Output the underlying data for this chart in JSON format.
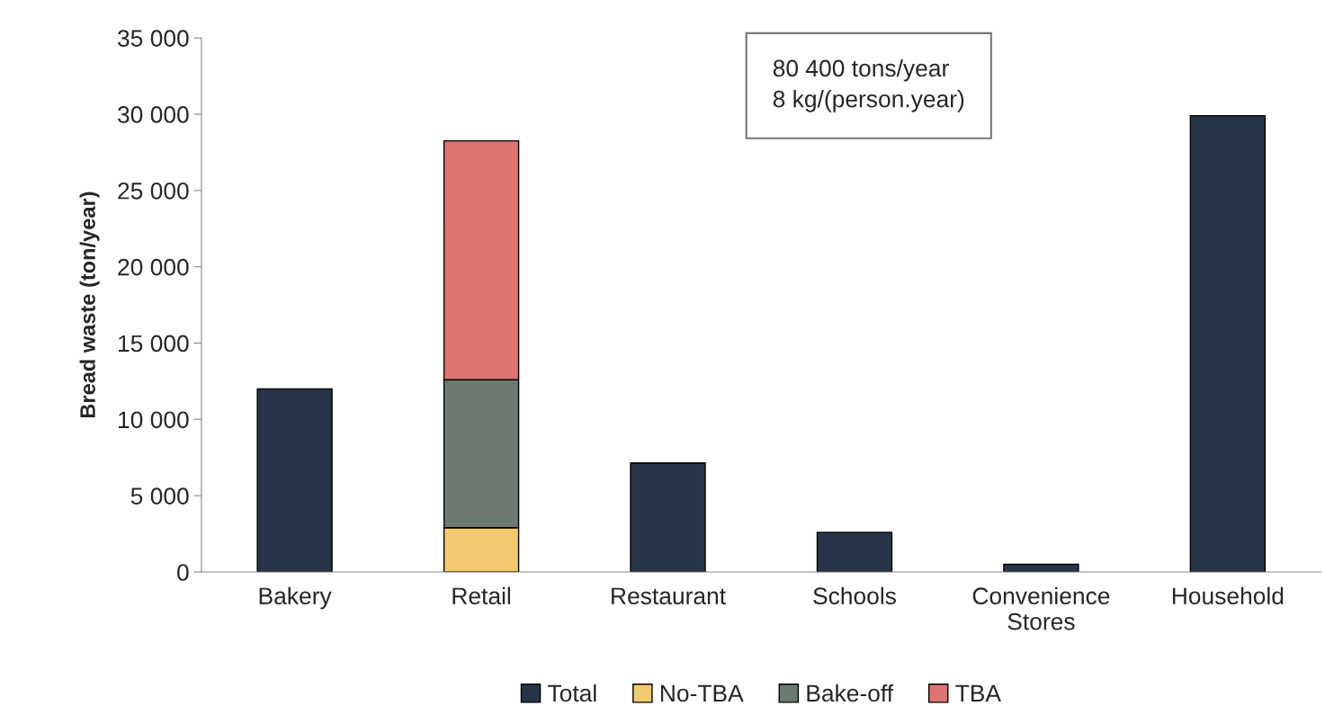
{
  "chart_data": {
    "type": "bar",
    "stacked": true,
    "ylabel": "Bread waste (ton/year)",
    "categories": [
      "Bakery",
      "Retail",
      "Restaurant",
      "Schools",
      "Convenience\nStores",
      "Household"
    ],
    "series": [
      {
        "name": "Total",
        "color": "#283548",
        "values": [
          12000,
          null,
          7150,
          2600,
          500,
          29900
        ]
      },
      {
        "name": "No-TBA",
        "color": "#f2c96e",
        "values": [
          null,
          2900,
          null,
          null,
          null,
          null
        ]
      },
      {
        "name": "Bake-off",
        "color": "#6b7b72",
        "values": [
          null,
          9700,
          null,
          null,
          null,
          null
        ]
      },
      {
        "name": "TBA",
        "color": "#df7473",
        "values": [
          null,
          15650,
          null,
          null,
          null,
          null
        ]
      }
    ],
    "ylim": [
      0,
      35000
    ],
    "yticks": [
      {
        "value": 0,
        "label": "0"
      },
      {
        "value": 5000,
        "label": "5 000"
      },
      {
        "value": 10000,
        "label": "10 000"
      },
      {
        "value": 15000,
        "label": "15 000"
      },
      {
        "value": 20000,
        "label": "20 000"
      },
      {
        "value": 25000,
        "label": "25 000"
      },
      {
        "value": 30000,
        "label": "30 000"
      },
      {
        "value": 35000,
        "label": "35 000"
      }
    ],
    "annotations": [
      "80 400 tons/year\n8 kg/(person.year)"
    ],
    "legend": "bottom",
    "grid": false
  }
}
